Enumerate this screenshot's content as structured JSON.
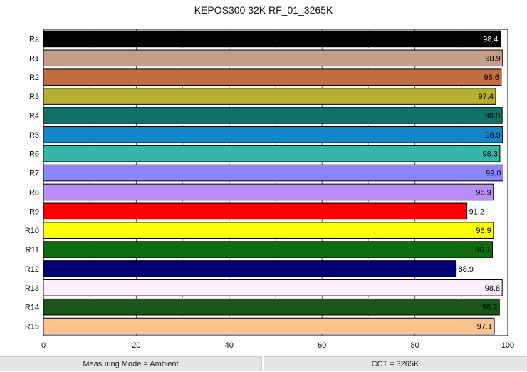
{
  "chart_data": {
    "type": "bar",
    "orientation": "horizontal",
    "title": "KEPOS300 32K RF_01_3265K",
    "xlim": [
      0,
      100
    ],
    "xticks": [
      0,
      20,
      40,
      60,
      80,
      100
    ],
    "grid": true,
    "categories": [
      "Ra",
      "R1",
      "R2",
      "R3",
      "R4",
      "R5",
      "R6",
      "R7",
      "R8",
      "R9",
      "R10",
      "R11",
      "R12",
      "R13",
      "R14",
      "R15"
    ],
    "values": [
      98.4,
      98.9,
      98.6,
      97.4,
      98.8,
      98.9,
      98.3,
      99.0,
      96.9,
      91.2,
      96.9,
      96.7,
      88.9,
      98.8,
      98.2,
      97.1
    ],
    "value_labels": [
      "98.4",
      "98.9",
      "98.6",
      "97.4",
      "98.8",
      "98.9",
      "98.3",
      "99.0",
      "96.9",
      "91.2",
      "96.9",
      "96.7",
      "88.9",
      "98.8",
      "98.2",
      "97.1"
    ],
    "colors": [
      "#000000",
      "#c69c8b",
      "#bf6e43",
      "#b5b030",
      "#137068",
      "#1486c7",
      "#36b8a8",
      "#8b86ff",
      "#b98cf6",
      "#ff0000",
      "#ffff00",
      "#0e6b0e",
      "#000077",
      "#fff0ff",
      "#1b571b",
      "#ffc48c"
    ],
    "label_colors": [
      "#ffffff",
      "#000000",
      "#000000",
      "#000000",
      "#000000",
      "#000000",
      "#000000",
      "#000000",
      "#000000",
      "#000000",
      "#000000",
      "#000000",
      "#000000",
      "#000000",
      "#000000",
      "#000000"
    ]
  },
  "status": {
    "measuring_mode": "Measuring Mode = Ambient",
    "cct": "CCT = 3265K"
  }
}
